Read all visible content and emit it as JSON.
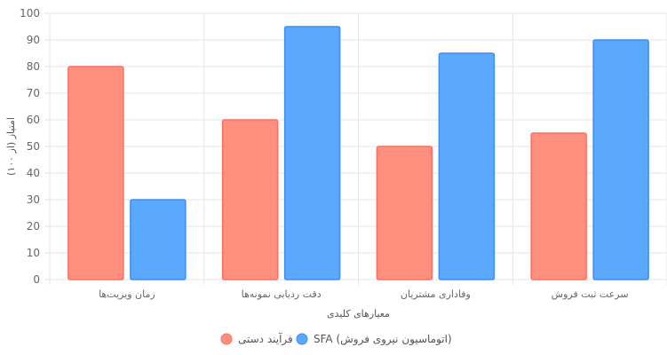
{
  "chart_data": {
    "type": "bar",
    "categories": [
      "زمان ویزیت‌ها",
      "دقت ردیابی نمونه‌ها",
      "وفاداری مشتریان",
      "سرعت ثبت فروش"
    ],
    "series": [
      {
        "name": "فرآیند دستی",
        "values": [
          80,
          60,
          50,
          55
        ],
        "color": "#ff8f7e",
        "border": "#ff6f61"
      },
      {
        "name": "SFA (اتوماسیون نیروی فروش)",
        "values": [
          30,
          95,
          85,
          90
        ],
        "color": "#5aa9ff",
        "border": "#3d8ef0"
      }
    ],
    "xlabel": "معیارهای کلیدی",
    "ylabel": "امتیاز (از ۱۰۰)",
    "ylim": [
      0,
      100
    ],
    "yticks": [
      0,
      10,
      20,
      30,
      40,
      50,
      60,
      70,
      80,
      90,
      100
    ],
    "grid": true,
    "legend_position": "bottom"
  }
}
